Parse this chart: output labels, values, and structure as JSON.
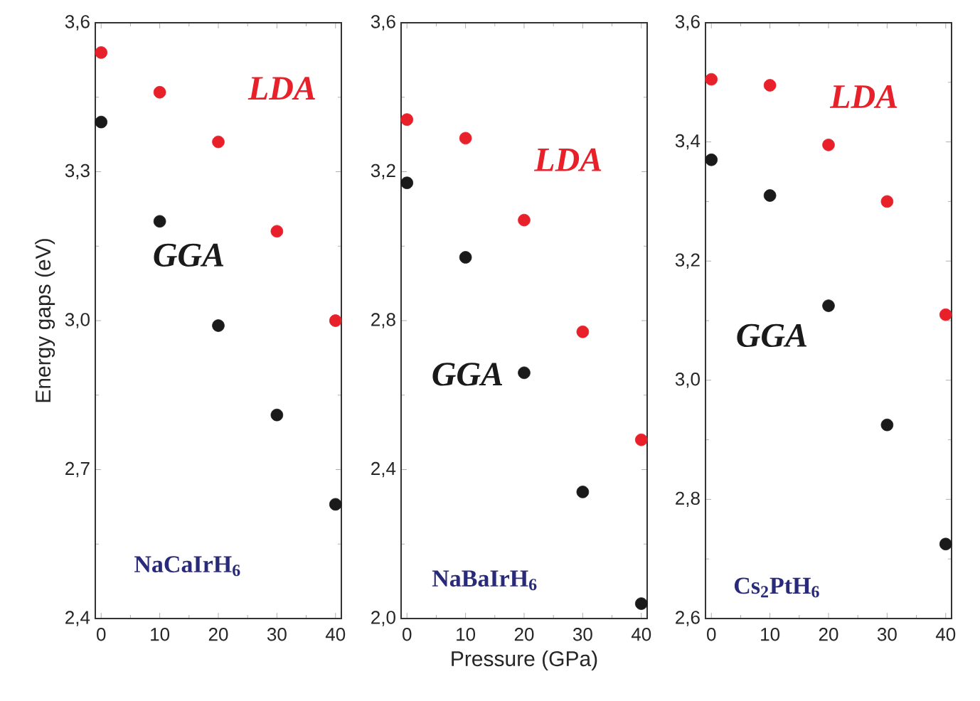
{
  "chart_data": [
    {
      "type": "scatter",
      "title": "NaCaIrH$_{6}$",
      "ylabel": "Energy gaps (eV)",
      "x": [
        0,
        10,
        20,
        30,
        40
      ],
      "series": [
        {
          "name": "LDA",
          "color": "#e8202a",
          "values": [
            3.54,
            3.46,
            3.36,
            3.18,
            3.0
          ]
        },
        {
          "name": "GGA",
          "color": "#1a1a1a",
          "values": [
            3.4,
            3.2,
            2.99,
            2.81,
            2.63
          ]
        }
      ],
      "xlim": [
        -1,
        41
      ],
      "ylim": [
        2.4,
        3.6
      ],
      "xticks": [
        0,
        10,
        20,
        30,
        40
      ],
      "yticks": [
        {
          "value": 2.4,
          "label": "2,4"
        },
        {
          "value": 2.7,
          "label": "2,7"
        },
        {
          "value": 3.0,
          "label": "3,0"
        },
        {
          "value": 3.3,
          "label": "3,3"
        },
        {
          "value": 3.6,
          "label": "3,6"
        }
      ]
    },
    {
      "type": "scatter",
      "title": "NaBaIrH$_{6}$",
      "xlabel": "Pressure (GPa)",
      "x": [
        0,
        10,
        20,
        30,
        40
      ],
      "series": [
        {
          "name": "LDA",
          "color": "#e8202a",
          "values": [
            3.34,
            3.29,
            3.07,
            2.77,
            2.48
          ]
        },
        {
          "name": "GGA",
          "color": "#1a1a1a",
          "values": [
            3.17,
            2.97,
            2.66,
            2.34,
            2.04
          ]
        }
      ],
      "xlim": [
        -1,
        41
      ],
      "ylim": [
        2.0,
        3.6
      ],
      "xticks": [
        0,
        10,
        20,
        30,
        40
      ],
      "yticks": [
        {
          "value": 2.0,
          "label": "2,0"
        },
        {
          "value": 2.4,
          "label": "2,4"
        },
        {
          "value": 2.8,
          "label": "2,8"
        },
        {
          "value": 3.2,
          "label": "3,2"
        },
        {
          "value": 3.6,
          "label": "3,6"
        }
      ]
    },
    {
      "type": "scatter",
      "title": "Cs$_{2}$PtH$_{6}$",
      "x": [
        0,
        10,
        20,
        30,
        40
      ],
      "series": [
        {
          "name": "LDA",
          "color": "#e8202a",
          "values": [
            3.505,
            3.495,
            3.395,
            3.3,
            3.11
          ]
        },
        {
          "name": "GGA",
          "color": "#1a1a1a",
          "values": [
            3.37,
            3.31,
            3.125,
            2.925,
            2.725
          ]
        }
      ],
      "xlim": [
        -1,
        41
      ],
      "ylim": [
        2.6,
        3.6
      ],
      "xticks": [
        0,
        10,
        20,
        30,
        40
      ],
      "yticks": [
        {
          "value": 2.6,
          "label": "2,6"
        },
        {
          "value": 2.8,
          "label": "2,8"
        },
        {
          "value": 3.0,
          "label": "3,0"
        },
        {
          "value": 3.2,
          "label": "3,2"
        },
        {
          "value": 3.4,
          "label": "3,4"
        },
        {
          "value": 3.6,
          "label": "3,6"
        }
      ]
    }
  ]
}
